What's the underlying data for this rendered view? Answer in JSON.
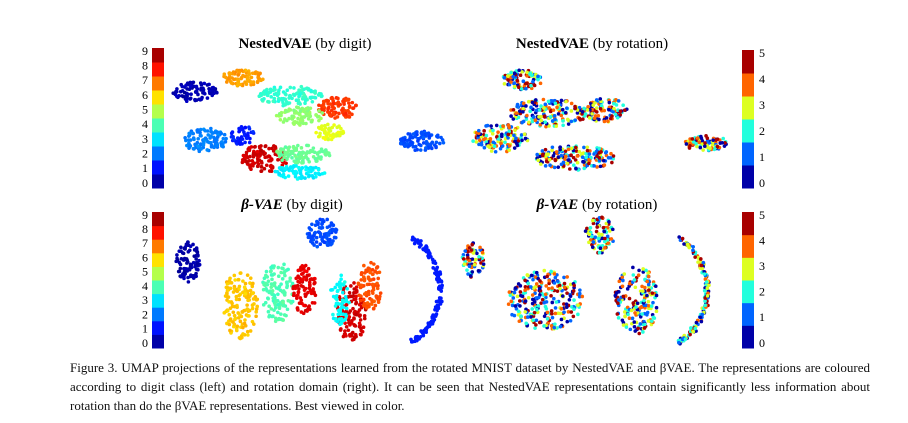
{
  "figure": {
    "panels": [
      {
        "title_bold": "NestedVAE",
        "title_rest": "(by digit)",
        "colorbar_ticks": [
          0,
          1,
          2,
          3,
          4,
          5,
          6,
          7,
          8,
          9
        ]
      },
      {
        "title_bold": "NestedVAE",
        "title_rest": "(by rotation)",
        "colorbar_ticks": [
          0,
          1,
          2,
          3,
          4,
          5
        ]
      },
      {
        "title_bold": "β-VAE",
        "title_rest": "(by digit)",
        "colorbar_ticks": [
          0,
          1,
          2,
          3,
          4,
          5,
          6,
          7,
          8,
          9
        ]
      },
      {
        "title_bold": "β-VAE",
        "title_rest": "(by rotation)",
        "colorbar_ticks": [
          0,
          1,
          2,
          3,
          4,
          5
        ]
      }
    ],
    "caption": "Figure 3. UMAP projections of the representations learned from the rotated MNIST dataset by NestedVAE and βVAE. The representations are coloured according to digit class (left) and rotation domain (right). It can be seen that NestedVAE representations contain significantly less information about rotation than do the βVAE representations. Best viewed in color."
  }
}
